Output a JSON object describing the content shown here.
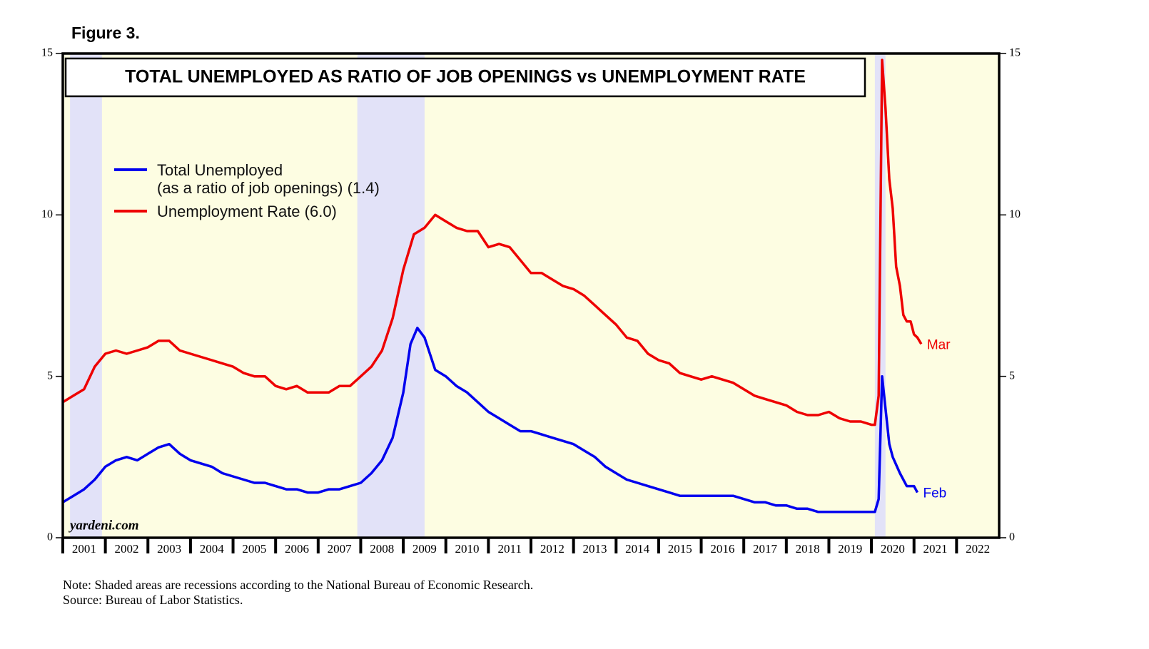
{
  "chart_data": {
    "type": "line",
    "figure_label": "Figure 3.",
    "title": "TOTAL UNEMPLOYED AS RATIO OF JOB OPENINGS vs UNEMPLOYMENT RATE",
    "watermark": "yardeni.com",
    "note": "Note: Shaded areas are recessions according to the National Bureau of Economic Research.",
    "source": "Source: Bureau of Labor Statistics.",
    "background_color": "#fdfde2",
    "recession_color": "#e2e2f8",
    "recessions": [
      [
        2001.17,
        2001.92
      ],
      [
        2007.92,
        2009.5
      ],
      [
        2020.08,
        2020.33
      ]
    ],
    "xlim": [
      2001,
      2023
    ],
    "xticks": [
      {
        "value": 2001,
        "label": "2001"
      },
      {
        "value": 2002,
        "label": "2002"
      },
      {
        "value": 2003,
        "label": "2003"
      },
      {
        "value": 2004,
        "label": "2004"
      },
      {
        "value": 2005,
        "label": "2005"
      },
      {
        "value": 2006,
        "label": "2006"
      },
      {
        "value": 2007,
        "label": "2007"
      },
      {
        "value": 2008,
        "label": "2008"
      },
      {
        "value": 2009,
        "label": "2009"
      },
      {
        "value": 2010,
        "label": "2010"
      },
      {
        "value": 2011,
        "label": "2011"
      },
      {
        "value": 2012,
        "label": "2012"
      },
      {
        "value": 2013,
        "label": "2013"
      },
      {
        "value": 2014,
        "label": "2014"
      },
      {
        "value": 2015,
        "label": "2015"
      },
      {
        "value": 2016,
        "label": "2016"
      },
      {
        "value": 2017,
        "label": "2017"
      },
      {
        "value": 2018,
        "label": "2018"
      },
      {
        "value": 2019,
        "label": "2019"
      },
      {
        "value": 2020,
        "label": "2020"
      },
      {
        "value": 2021,
        "label": "2021"
      },
      {
        "value": 2022,
        "label": "2022"
      }
    ],
    "ylim": [
      0,
      15
    ],
    "yticks": [
      0,
      5,
      10,
      15
    ],
    "y2lim": [
      0,
      15
    ],
    "y2ticks": [
      0,
      5,
      10,
      15
    ],
    "series": [
      {
        "name": "Total Unemployed\n(as a ratio of job openings) (1.4)",
        "color": "#0000ee",
        "end_label": "Feb",
        "x": [
          2001.0,
          2001.25,
          2001.5,
          2001.75,
          2002.0,
          2002.25,
          2002.5,
          2002.75,
          2003.0,
          2003.25,
          2003.5,
          2003.75,
          2004.0,
          2004.25,
          2004.5,
          2004.75,
          2005.0,
          2005.25,
          2005.5,
          2005.75,
          2006.0,
          2006.25,
          2006.5,
          2006.75,
          2007.0,
          2007.25,
          2007.5,
          2007.75,
          2008.0,
          2008.25,
          2008.5,
          2008.75,
          2009.0,
          2009.17,
          2009.33,
          2009.5,
          2009.75,
          2010.0,
          2010.25,
          2010.5,
          2010.75,
          2011.0,
          2011.25,
          2011.5,
          2011.75,
          2012.0,
          2012.25,
          2012.5,
          2012.75,
          2013.0,
          2013.25,
          2013.5,
          2013.75,
          2014.0,
          2014.25,
          2014.5,
          2014.75,
          2015.0,
          2015.25,
          2015.5,
          2015.75,
          2016.0,
          2016.25,
          2016.5,
          2016.75,
          2017.0,
          2017.25,
          2017.5,
          2017.75,
          2018.0,
          2018.25,
          2018.5,
          2018.75,
          2019.0,
          2019.25,
          2019.5,
          2019.75,
          2020.0,
          2020.08,
          2020.17,
          2020.25,
          2020.33,
          2020.42,
          2020.5,
          2020.67,
          2020.83,
          2021.0,
          2021.08
        ],
        "values": [
          1.1,
          1.3,
          1.5,
          1.8,
          2.2,
          2.4,
          2.5,
          2.4,
          2.6,
          2.8,
          2.9,
          2.6,
          2.4,
          2.3,
          2.2,
          2.0,
          1.9,
          1.8,
          1.7,
          1.7,
          1.6,
          1.5,
          1.5,
          1.4,
          1.4,
          1.5,
          1.5,
          1.6,
          1.7,
          2.0,
          2.4,
          3.1,
          4.5,
          6.0,
          6.5,
          6.2,
          5.2,
          5.0,
          4.7,
          4.5,
          4.2,
          3.9,
          3.7,
          3.5,
          3.3,
          3.3,
          3.2,
          3.1,
          3.0,
          2.9,
          2.7,
          2.5,
          2.2,
          2.0,
          1.8,
          1.7,
          1.6,
          1.5,
          1.4,
          1.3,
          1.3,
          1.3,
          1.3,
          1.3,
          1.3,
          1.2,
          1.1,
          1.1,
          1.0,
          1.0,
          0.9,
          0.9,
          0.8,
          0.8,
          0.8,
          0.8,
          0.8,
          0.8,
          0.8,
          1.2,
          5.0,
          4.0,
          2.9,
          2.5,
          2.0,
          1.6,
          1.6,
          1.4
        ]
      },
      {
        "name": "Unemployment Rate (6.0)",
        "color": "#ee0000",
        "end_label": "Mar",
        "axis": "y2",
        "x": [
          2001.0,
          2001.25,
          2001.5,
          2001.75,
          2002.0,
          2002.25,
          2002.5,
          2002.75,
          2003.0,
          2003.25,
          2003.5,
          2003.75,
          2004.0,
          2004.25,
          2004.5,
          2004.75,
          2005.0,
          2005.25,
          2005.5,
          2005.75,
          2006.0,
          2006.25,
          2006.5,
          2006.75,
          2007.0,
          2007.25,
          2007.5,
          2007.75,
          2008.0,
          2008.25,
          2008.5,
          2008.75,
          2009.0,
          2009.25,
          2009.5,
          2009.75,
          2010.0,
          2010.25,
          2010.5,
          2010.75,
          2011.0,
          2011.25,
          2011.5,
          2011.75,
          2012.0,
          2012.25,
          2012.5,
          2012.75,
          2013.0,
          2013.25,
          2013.5,
          2013.75,
          2014.0,
          2014.25,
          2014.5,
          2014.75,
          2015.0,
          2015.25,
          2015.5,
          2015.75,
          2016.0,
          2016.25,
          2016.5,
          2016.75,
          2017.0,
          2017.25,
          2017.5,
          2017.75,
          2018.0,
          2018.25,
          2018.5,
          2018.75,
          2019.0,
          2019.25,
          2019.5,
          2019.75,
          2020.0,
          2020.08,
          2020.17,
          2020.25,
          2020.33,
          2020.42,
          2020.5,
          2020.58,
          2020.67,
          2020.75,
          2020.83,
          2020.92,
          2021.0,
          2021.08,
          2021.17
        ],
        "values": [
          4.2,
          4.4,
          4.6,
          5.3,
          5.7,
          5.8,
          5.7,
          5.8,
          5.9,
          6.1,
          6.1,
          5.8,
          5.7,
          5.6,
          5.5,
          5.4,
          5.3,
          5.1,
          5.0,
          5.0,
          4.7,
          4.6,
          4.7,
          4.5,
          4.5,
          4.5,
          4.7,
          4.7,
          5.0,
          5.3,
          5.8,
          6.8,
          8.3,
          9.4,
          9.6,
          10.0,
          9.8,
          9.6,
          9.5,
          9.5,
          9.0,
          9.1,
          9.0,
          8.6,
          8.2,
          8.2,
          8.0,
          7.8,
          7.7,
          7.5,
          7.2,
          6.9,
          6.6,
          6.2,
          6.1,
          5.7,
          5.5,
          5.4,
          5.1,
          5.0,
          4.9,
          5.0,
          4.9,
          4.8,
          4.6,
          4.4,
          4.3,
          4.2,
          4.1,
          3.9,
          3.8,
          3.8,
          3.9,
          3.7,
          3.6,
          3.6,
          3.5,
          3.5,
          4.4,
          14.8,
          13.3,
          11.1,
          10.2,
          8.4,
          7.8,
          6.9,
          6.7,
          6.7,
          6.3,
          6.2,
          6.0
        ]
      }
    ]
  }
}
